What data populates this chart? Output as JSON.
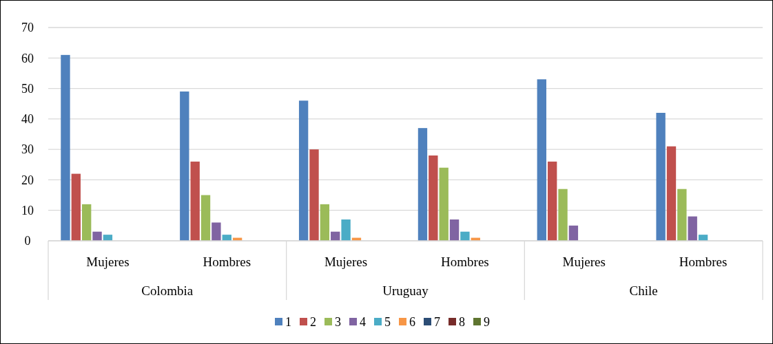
{
  "chart_data": {
    "type": "bar",
    "categories": [
      "Mujeres",
      "Hombres",
      "Mujeres",
      "Hombres",
      "Mujeres",
      "Hombres"
    ],
    "annotations": [
      "Colombia",
      "Uruguay",
      "Chile"
    ],
    "series": [
      {
        "name": "1",
        "color": "#4f81bd",
        "values": [
          61,
          49,
          46,
          37,
          53,
          42
        ]
      },
      {
        "name": "2",
        "color": "#c0504d",
        "values": [
          22,
          26,
          30,
          28,
          26,
          31
        ]
      },
      {
        "name": "3",
        "color": "#9bbb59",
        "values": [
          12,
          15,
          12,
          24,
          17,
          17
        ]
      },
      {
        "name": "4",
        "color": "#8064a2",
        "values": [
          3,
          6,
          3,
          7,
          5,
          8
        ]
      },
      {
        "name": "5",
        "color": "#4bacc6",
        "values": [
          2,
          2,
          7,
          3,
          0,
          2
        ]
      },
      {
        "name": "6",
        "color": "#f79646",
        "values": [
          0,
          1,
          1,
          1,
          0,
          0
        ]
      },
      {
        "name": "7",
        "color": "#2c4d75",
        "values": [
          0,
          0,
          0,
          0,
          0,
          0
        ]
      },
      {
        "name": "8",
        "color": "#772c2a",
        "values": [
          0,
          0,
          0,
          0,
          0,
          0
        ]
      },
      {
        "name": "9",
        "color": "#5f7530",
        "values": [
          0,
          0,
          0,
          0,
          0,
          0
        ]
      }
    ],
    "ylim": [
      0,
      70
    ],
    "yticks": [
      0,
      10,
      20,
      30,
      40,
      50,
      60,
      70
    ],
    "grid": "y",
    "legend": "bottom"
  }
}
